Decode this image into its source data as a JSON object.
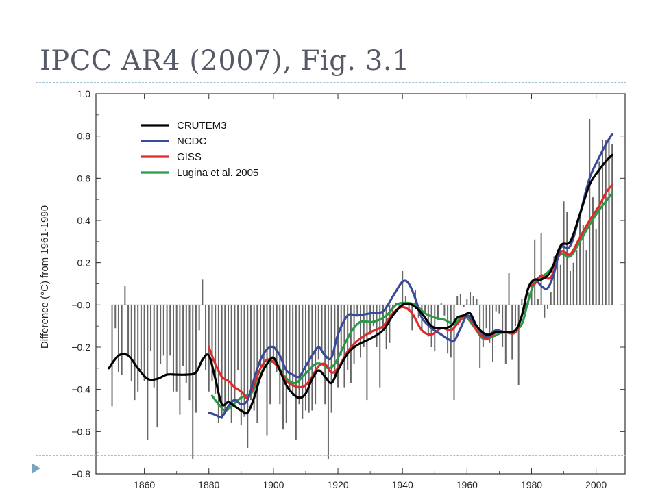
{
  "slide": {
    "title": "IPCC AR4 (2007), Fig. 3.1"
  },
  "colors": {
    "rule": "#9fc3d3",
    "bullet": "#7aa3c0",
    "title": "#555a66"
  },
  "chart_data": {
    "type": "line",
    "title": "",
    "xlabel": "",
    "ylabel": "Difference (°C) from 1961-1990",
    "xlim": [
      1845,
      2009
    ],
    "ylim": [
      -0.8,
      1.0
    ],
    "x_ticks": [
      1860,
      1880,
      1900,
      1920,
      1940,
      1960,
      1980,
      2000
    ],
    "y_ticks": [
      1.0,
      0.8,
      0.6,
      0.4,
      0.2,
      0.0,
      -0.2,
      -0.4,
      -0.6,
      -0.8
    ],
    "y_tick_labels": [
      "1.0",
      "0.8",
      "0.6",
      "0.4",
      "0.2",
      "−0.0",
      "−0.2",
      "−0.4",
      "−0.6",
      "−0.8"
    ],
    "grid": false,
    "legend_position": "top-left",
    "bars": {
      "name": "",
      "color": "#666666",
      "years": [
        1850,
        1851,
        1852,
        1853,
        1854,
        1855,
        1856,
        1857,
        1858,
        1859,
        1860,
        1861,
        1862,
        1863,
        1864,
        1865,
        1866,
        1867,
        1868,
        1869,
        1870,
        1871,
        1872,
        1873,
        1874,
        1875,
        1876,
        1877,
        1878,
        1879,
        1880,
        1881,
        1882,
        1883,
        1884,
        1885,
        1886,
        1887,
        1888,
        1889,
        1890,
        1891,
        1892,
        1893,
        1894,
        1895,
        1896,
        1897,
        1898,
        1899,
        1900,
        1901,
        1902,
        1903,
        1904,
        1905,
        1906,
        1907,
        1908,
        1909,
        1910,
        1911,
        1912,
        1913,
        1914,
        1915,
        1916,
        1917,
        1918,
        1919,
        1920,
        1921,
        1922,
        1923,
        1924,
        1925,
        1926,
        1927,
        1928,
        1929,
        1930,
        1931,
        1932,
        1933,
        1934,
        1935,
        1936,
        1937,
        1938,
        1939,
        1940,
        1941,
        1942,
        1943,
        1944,
        1945,
        1946,
        1947,
        1948,
        1949,
        1950,
        1951,
        1952,
        1953,
        1954,
        1955,
        1956,
        1957,
        1958,
        1959,
        1960,
        1961,
        1962,
        1963,
        1964,
        1965,
        1966,
        1967,
        1968,
        1969,
        1970,
        1971,
        1972,
        1973,
        1974,
        1975,
        1976,
        1977,
        1978,
        1979,
        1980,
        1981,
        1982,
        1983,
        1984,
        1985,
        1986,
        1987,
        1988,
        1989,
        1990,
        1991,
        1992,
        1993,
        1994,
        1995,
        1996,
        1997,
        1998,
        1999,
        2000,
        2001,
        2002,
        2003,
        2004,
        2005
      ],
      "values": [
        -0.48,
        -0.11,
        -0.32,
        -0.33,
        0.09,
        -0.24,
        -0.36,
        -0.45,
        -0.41,
        -0.31,
        -0.36,
        -0.64,
        -0.22,
        -0.39,
        -0.58,
        -0.28,
        -0.24,
        -0.33,
        -0.24,
        -0.41,
        -0.41,
        -0.52,
        -0.29,
        -0.37,
        -0.45,
        -0.73,
        -0.51,
        -0.12,
        0.12,
        -0.31,
        -0.41,
        -0.36,
        -0.42,
        -0.56,
        -0.54,
        -0.5,
        -0.46,
        -0.56,
        -0.48,
        -0.31,
        -0.57,
        -0.53,
        -0.68,
        -0.45,
        -0.5,
        -0.56,
        -0.3,
        -0.31,
        -0.62,
        -0.47,
        -0.28,
        -0.32,
        -0.47,
        -0.59,
        -0.56,
        -0.41,
        -0.43,
        -0.64,
        -0.47,
        -0.54,
        -0.5,
        -0.51,
        -0.5,
        -0.47,
        -0.26,
        -0.22,
        -0.47,
        -0.73,
        -0.51,
        -0.34,
        -0.39,
        -0.24,
        -0.39,
        -0.31,
        -0.37,
        -0.28,
        -0.05,
        -0.25,
        -0.2,
        -0.45,
        -0.14,
        -0.1,
        -0.2,
        -0.39,
        -0.12,
        -0.21,
        -0.18,
        -0.04,
        0.01,
        -0.01,
        0.16,
        0.04,
        -0.03,
        -0.12,
        0.07,
        -0.06,
        -0.12,
        -0.04,
        -0.15,
        -0.2,
        -0.22,
        -0.07,
        0.01,
        -0.05,
        -0.23,
        -0.25,
        -0.45,
        0.04,
        0.05,
        -0.01,
        0.03,
        0.06,
        0.04,
        0.03,
        -0.3,
        -0.2,
        -0.11,
        -0.18,
        -0.27,
        -0.03,
        -0.04,
        -0.2,
        -0.28,
        0.15,
        -0.26,
        -0.1,
        -0.38,
        0.03,
        -0.04,
        0.06,
        0.11,
        0.31,
        0.03,
        0.34,
        -0.06,
        -0.02,
        0.06,
        0.23,
        0.26,
        0.19,
        0.49,
        0.44,
        0.16,
        0.2,
        0.26,
        0.44,
        0.38,
        0.26,
        0.88,
        0.51,
        0.36,
        0.68,
        0.78,
        0.78,
        0.78,
        0.76
      ]
    },
    "series": [
      {
        "name": "CRUTEM3",
        "color": "#000000",
        "x": [
          1849,
          1852,
          1855,
          1858,
          1861,
          1864,
          1867,
          1870,
          1873,
          1876,
          1878,
          1880,
          1882,
          1884,
          1886,
          1888,
          1890,
          1892,
          1894,
          1896,
          1898,
          1900,
          1902,
          1904,
          1906,
          1908,
          1910,
          1912,
          1914,
          1916,
          1918,
          1920,
          1923,
          1926,
          1930,
          1934,
          1937,
          1940,
          1943,
          1946,
          1949,
          1952,
          1955,
          1957,
          1959,
          1961,
          1963,
          1966,
          1969,
          1972,
          1975,
          1977,
          1979,
          1981,
          1983,
          1986,
          1989,
          1992,
          1995,
          1998,
          2001,
          2003,
          2005
        ],
        "y": [
          -0.3,
          -0.24,
          -0.24,
          -0.3,
          -0.35,
          -0.35,
          -0.33,
          -0.33,
          -0.33,
          -0.32,
          -0.26,
          -0.24,
          -0.35,
          -0.47,
          -0.46,
          -0.48,
          -0.5,
          -0.51,
          -0.44,
          -0.34,
          -0.28,
          -0.25,
          -0.31,
          -0.38,
          -0.42,
          -0.44,
          -0.42,
          -0.35,
          -0.31,
          -0.34,
          -0.37,
          -0.31,
          -0.23,
          -0.19,
          -0.16,
          -0.12,
          -0.05,
          0.0,
          0.0,
          -0.04,
          -0.1,
          -0.11,
          -0.1,
          -0.06,
          -0.05,
          -0.04,
          -0.1,
          -0.14,
          -0.13,
          -0.13,
          -0.12,
          -0.05,
          0.08,
          0.12,
          0.12,
          0.16,
          0.28,
          0.3,
          0.43,
          0.57,
          0.64,
          0.68,
          0.71
        ]
      },
      {
        "name": "NCDC",
        "color": "#3a4a9a",
        "x": [
          1880,
          1882,
          1884,
          1886,
          1888,
          1890,
          1892,
          1894,
          1896,
          1898,
          1900,
          1902,
          1904,
          1906,
          1908,
          1910,
          1912,
          1914,
          1916,
          1918,
          1920,
          1923,
          1926,
          1930,
          1934,
          1937,
          1940,
          1942,
          1944,
          1946,
          1949,
          1952,
          1954,
          1956,
          1958,
          1960,
          1962,
          1964,
          1966,
          1969,
          1972,
          1975,
          1977,
          1979,
          1981,
          1983,
          1985,
          1987,
          1989,
          1992,
          1995,
          1998,
          2001,
          2003,
          2005
        ],
        "y": [
          -0.51,
          -0.52,
          -0.53,
          -0.48,
          -0.45,
          -0.47,
          -0.45,
          -0.35,
          -0.26,
          -0.21,
          -0.2,
          -0.24,
          -0.31,
          -0.33,
          -0.34,
          -0.29,
          -0.24,
          -0.2,
          -0.24,
          -0.25,
          -0.14,
          -0.05,
          -0.05,
          -0.04,
          -0.03,
          0.04,
          0.11,
          0.1,
          0.03,
          -0.06,
          -0.11,
          -0.14,
          -0.16,
          -0.17,
          -0.11,
          -0.05,
          -0.08,
          -0.12,
          -0.15,
          -0.12,
          -0.13,
          -0.12,
          -0.05,
          0.08,
          0.12,
          0.09,
          0.08,
          0.15,
          0.27,
          0.28,
          0.43,
          0.6,
          0.7,
          0.76,
          0.81
        ]
      },
      {
        "name": "GISS",
        "color": "#dd2a2a",
        "x": [
          1880,
          1882,
          1884,
          1886,
          1888,
          1890,
          1892,
          1894,
          1896,
          1898,
          1900,
          1902,
          1904,
          1906,
          1908,
          1910,
          1912,
          1914,
          1916,
          1918,
          1920,
          1923,
          1926,
          1930,
          1934,
          1937,
          1940,
          1943,
          1946,
          1949,
          1952,
          1955,
          1957,
          1960,
          1963,
          1966,
          1969,
          1972,
          1975,
          1977,
          1979,
          1981,
          1983,
          1986,
          1989,
          1992,
          1995,
          1998,
          2001,
          2003,
          2005
        ],
        "y": [
          -0.2,
          -0.28,
          -0.34,
          -0.36,
          -0.39,
          -0.41,
          -0.44,
          -0.38,
          -0.3,
          -0.26,
          -0.27,
          -0.31,
          -0.36,
          -0.38,
          -0.39,
          -0.38,
          -0.34,
          -0.29,
          -0.28,
          -0.32,
          -0.3,
          -0.22,
          -0.17,
          -0.13,
          -0.1,
          -0.04,
          -0.01,
          -0.04,
          -0.12,
          -0.14,
          -0.11,
          -0.12,
          -0.09,
          -0.05,
          -0.12,
          -0.16,
          -0.13,
          -0.13,
          -0.13,
          -0.05,
          0.08,
          0.1,
          0.14,
          0.13,
          0.25,
          0.24,
          0.32,
          0.4,
          0.47,
          0.53,
          0.57
        ]
      },
      {
        "name": "Lugina et al. 2005",
        "color": "#2a9a48",
        "x": [
          1881,
          1883,
          1885,
          1887,
          1889,
          1891,
          1893,
          1895,
          1897,
          1899,
          1901,
          1903,
          1905,
          1907,
          1909,
          1911,
          1913,
          1915,
          1917,
          1919,
          1921,
          1924,
          1927,
          1931,
          1935,
          1938,
          1941,
          1944,
          1947,
          1950,
          1953,
          1956,
          1959,
          1962,
          1965,
          1968,
          1971,
          1974,
          1977,
          1979,
          1981,
          1983,
          1986,
          1989,
          1992,
          1995,
          1998,
          2001,
          2003,
          2005
        ],
        "y": [
          -0.43,
          -0.47,
          -0.5,
          -0.48,
          -0.45,
          -0.43,
          -0.42,
          -0.37,
          -0.3,
          -0.27,
          -0.28,
          -0.33,
          -0.36,
          -0.37,
          -0.34,
          -0.31,
          -0.28,
          -0.28,
          -0.3,
          -0.28,
          -0.22,
          -0.13,
          -0.08,
          -0.08,
          -0.05,
          0.0,
          0.01,
          0.0,
          -0.04,
          -0.06,
          -0.07,
          -0.09,
          -0.05,
          -0.1,
          -0.16,
          -0.15,
          -0.13,
          -0.13,
          -0.09,
          0.02,
          0.11,
          0.13,
          0.17,
          0.24,
          0.23,
          0.3,
          0.38,
          0.45,
          0.49,
          0.53
        ]
      }
    ]
  }
}
